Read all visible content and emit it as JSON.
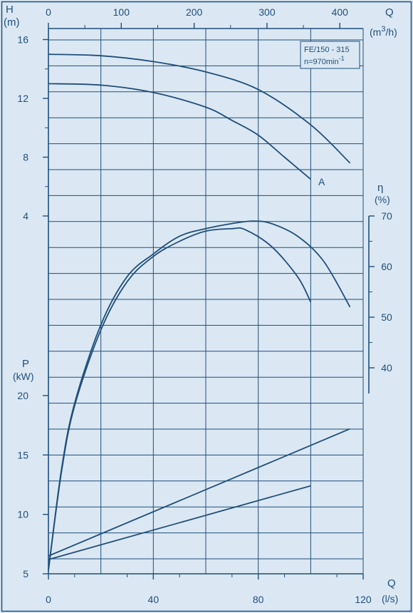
{
  "chart_data": {
    "type": "line",
    "model_box": {
      "line1": "FE/150 - 315",
      "line2": "n=970min",
      "line2_sup": "-1"
    },
    "colors": {
      "background": "#dbe8f3",
      "ink": "#1f4e7c",
      "grid": "#1f4e7c"
    },
    "axes": {
      "q_ls": {
        "label": "Q",
        "unit": "(l/s)",
        "ticks": [
          0,
          40,
          80,
          120
        ],
        "range": [
          0,
          120
        ]
      },
      "q_m3h": {
        "label": "Q",
        "unit": "(m",
        "unit_sup": "3",
        "unit_end": "/h)",
        "ticks": [
          0,
          100,
          200,
          300,
          400
        ]
      },
      "head": {
        "label": "H",
        "unit": "(m)",
        "ticks": [
          4,
          8,
          12,
          16
        ],
        "range": [
          2,
          16
        ]
      },
      "efficiency": {
        "label": "η",
        "unit": "(%)",
        "ticks": [
          40,
          50,
          60,
          70
        ]
      },
      "power": {
        "label": "P",
        "unit": "(kW)",
        "ticks": [
          5,
          10,
          15,
          20
        ],
        "range": [
          5,
          20
        ]
      }
    },
    "curve_label": "A",
    "head_series": [
      {
        "x": [
          0,
          20,
          40,
          60,
          80,
          100,
          115
        ],
        "y": [
          15.0,
          14.9,
          14.5,
          13.8,
          12.6,
          10.2,
          7.6
        ]
      },
      {
        "x": [
          0,
          20,
          40,
          60,
          70,
          80,
          90,
          100
        ],
        "y": [
          13.0,
          12.9,
          12.4,
          11.4,
          10.5,
          9.5,
          8.0,
          6.5
        ]
      }
    ],
    "efficiency_series": [
      {
        "x": [
          0,
          5,
          10,
          20,
          30,
          40,
          50,
          60,
          70,
          78,
          85,
          95,
          105,
          115
        ],
        "y": [
          0,
          20,
          33,
          48.5,
          58,
          62.5,
          66,
          67.5,
          68.5,
          69,
          68.5,
          66,
          61,
          52
        ]
      },
      {
        "x": [
          0,
          5,
          10,
          20,
          30,
          40,
          50,
          60,
          70,
          75,
          85,
          95,
          100
        ],
        "y": [
          0,
          19.5,
          32.5,
          47.5,
          57,
          62,
          65,
          67,
          67.5,
          67.3,
          64,
          58,
          53
        ]
      }
    ],
    "power_series": [
      {
        "x": [
          0,
          115
        ],
        "y": [
          6.5,
          17.2
        ]
      },
      {
        "x": [
          0,
          100
        ],
        "y": [
          6.2,
          12.4
        ]
      }
    ]
  }
}
